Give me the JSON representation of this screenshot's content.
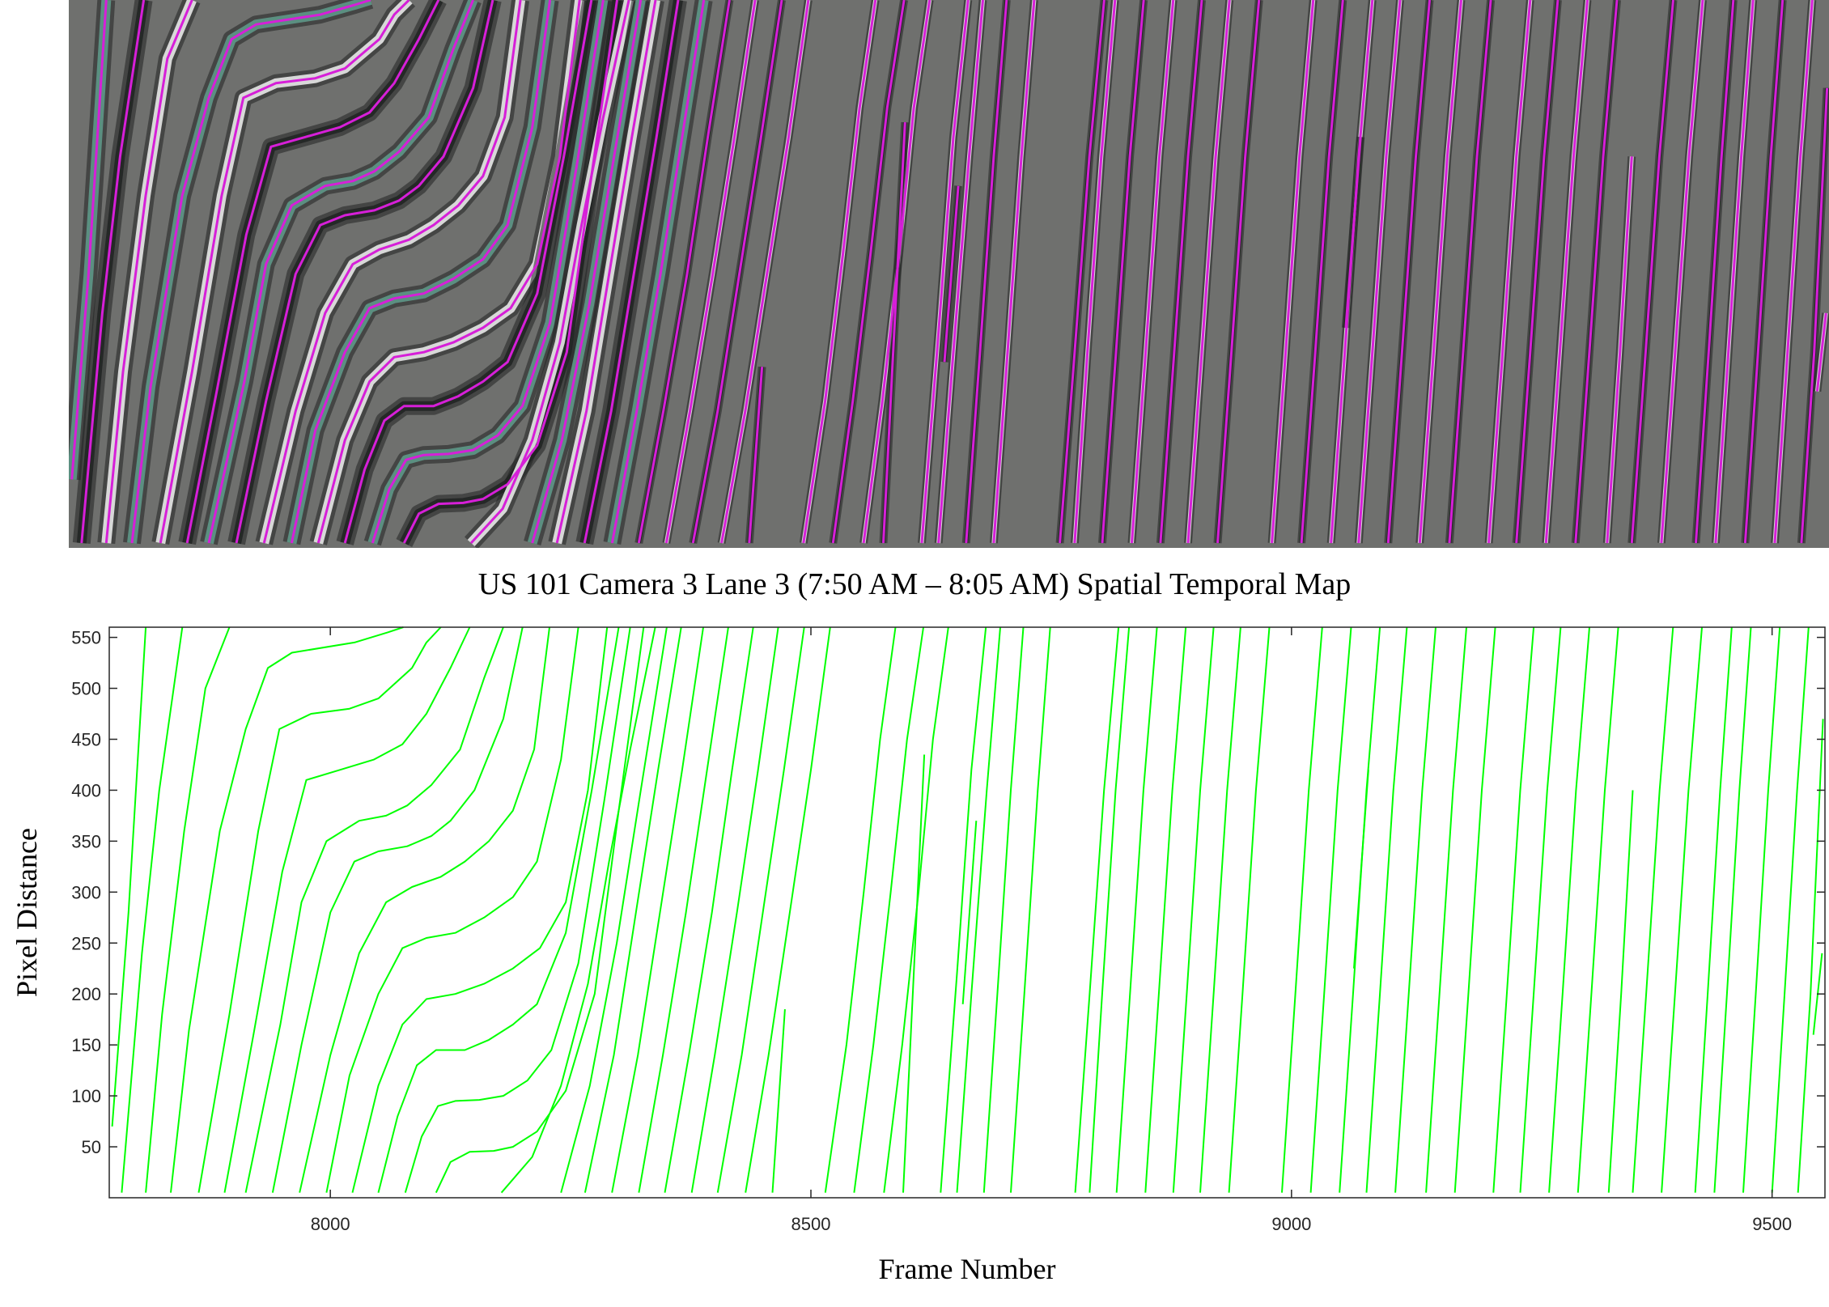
{
  "figure_caption": "US 101 Camera 3 Lane 3 (7:50 AM – 8:05 AM) Spatial Temporal Map",
  "colors": {
    "stmap_background": "#6f706e",
    "stmap_trajectory": "#d61fd8",
    "stmap_vehicle_light": "#f2f2f2",
    "stmap_vehicle_dark": "#202322",
    "stmap_vehicle_teal": "#5f9c8c",
    "plot_line": "#00ff00",
    "axis": "#262626"
  },
  "chart_data": {
    "type": "line",
    "title": "",
    "xlabel": "Frame Number",
    "ylabel": "Pixel Distance",
    "xlim": [
      7770,
      9555
    ],
    "ylim": [
      0,
      560
    ],
    "xticks": [
      8000,
      8500,
      9000,
      9500
    ],
    "yticks": [
      50,
      100,
      150,
      200,
      250,
      300,
      350,
      400,
      450,
      500,
      550
    ],
    "grid": false,
    "legend": "none",
    "series": [
      {
        "x": [
          7773,
          7790,
          7808
        ],
        "y": [
          70,
          280,
          560
        ]
      },
      {
        "x": [
          7783,
          7804,
          7822,
          7846
        ],
        "y": [
          5,
          240,
          400,
          560
        ]
      },
      {
        "x": [
          7808,
          7825,
          7848,
          7870,
          7895
        ],
        "y": [
          5,
          180,
          360,
          500,
          560
        ]
      },
      {
        "x": [
          7834,
          7853,
          7885,
          7912,
          7935,
          7960,
          8025,
          8060,
          8076
        ],
        "y": [
          5,
          165,
          360,
          460,
          520,
          535,
          545,
          555,
          560
        ]
      },
      {
        "x": [
          7863,
          7895,
          7925,
          7947,
          7980,
          8020,
          8050,
          8085,
          8100,
          8115
        ],
        "y": [
          5,
          180,
          360,
          460,
          475,
          480,
          490,
          520,
          545,
          560
        ]
      },
      {
        "x": [
          7890,
          7920,
          7950,
          7975,
          8010,
          8045,
          8075,
          8100,
          8125,
          8145
        ],
        "y": [
          5,
          160,
          320,
          410,
          420,
          430,
          445,
          475,
          520,
          560
        ]
      },
      {
        "x": [
          7912,
          7948,
          7970,
          7996,
          8030,
          8058,
          8080,
          8105,
          8135,
          8160,
          8180
        ],
        "y": [
          5,
          170,
          290,
          350,
          370,
          375,
          385,
          405,
          440,
          510,
          560
        ]
      },
      {
        "x": [
          7940,
          7970,
          8000,
          8025,
          8050,
          8080,
          8105,
          8125,
          8150,
          8180,
          8200
        ],
        "y": [
          5,
          150,
          280,
          330,
          340,
          345,
          355,
          370,
          400,
          470,
          560
        ]
      },
      {
        "x": [
          7968,
          8000,
          8030,
          8058,
          8085,
          8115,
          8140,
          8165,
          8190,
          8212,
          8228
        ],
        "y": [
          5,
          140,
          240,
          290,
          305,
          315,
          330,
          350,
          380,
          440,
          560
        ]
      },
      {
        "x": [
          7996,
          8020,
          8050,
          8075,
          8100,
          8130,
          8160,
          8190,
          8215,
          8240,
          8258
        ],
        "y": [
          5,
          120,
          200,
          245,
          255,
          260,
          275,
          295,
          330,
          430,
          560
        ]
      },
      {
        "x": [
          8023,
          8050,
          8075,
          8100,
          8130,
          8160,
          8190,
          8218,
          8245,
          8268,
          8288
        ],
        "y": [
          5,
          110,
          170,
          195,
          200,
          210,
          225,
          245,
          290,
          400,
          560
        ]
      },
      {
        "x": [
          8050,
          8070,
          8090,
          8110,
          8140,
          8165,
          8190,
          8215,
          8245,
          8272,
          8300
        ],
        "y": [
          5,
          80,
          130,
          145,
          145,
          155,
          170,
          190,
          260,
          400,
          560
        ]
      },
      {
        "x": [
          8078,
          8095,
          8112,
          8130,
          8155,
          8180,
          8205,
          8230,
          8258,
          8285,
          8312
        ],
        "y": [
          5,
          60,
          90,
          95,
          96,
          100,
          115,
          145,
          230,
          390,
          560
        ]
      },
      {
        "x": [
          8110,
          8125,
          8145,
          8170,
          8190,
          8215,
          8245,
          8275,
          8300,
          8326
        ],
        "y": [
          5,
          35,
          45,
          46,
          50,
          65,
          105,
          200,
          380,
          560
        ]
      },
      {
        "x": [
          8178,
          8210,
          8240,
          8268,
          8290,
          8312,
          8338
        ],
        "y": [
          5,
          40,
          110,
          210,
          330,
          440,
          560
        ]
      },
      {
        "x": [
          8240,
          8270,
          8298,
          8323,
          8350
        ],
        "y": [
          5,
          110,
          250,
          400,
          560
        ]
      },
      {
        "x": [
          8265,
          8295,
          8318,
          8341,
          8365
        ],
        "y": [
          5,
          140,
          280,
          420,
          560
        ]
      },
      {
        "x": [
          8293,
          8320,
          8343,
          8366,
          8388
        ],
        "y": [
          5,
          140,
          280,
          420,
          560
        ]
      },
      {
        "x": [
          8321,
          8346,
          8370,
          8392,
          8414
        ],
        "y": [
          5,
          140,
          280,
          420,
          560
        ]
      },
      {
        "x": [
          8348,
          8373,
          8397,
          8418,
          8440
        ],
        "y": [
          5,
          140,
          280,
          420,
          560
        ]
      },
      {
        "x": [
          8376,
          8400,
          8423,
          8445,
          8466
        ],
        "y": [
          5,
          140,
          280,
          420,
          560
        ]
      },
      {
        "x": [
          8403,
          8428,
          8450,
          8472,
          8493
        ],
        "y": [
          5,
          140,
          280,
          420,
          560
        ]
      },
      {
        "x": [
          8432,
          8456,
          8478,
          8500,
          8520
        ],
        "y": [
          5,
          140,
          280,
          420,
          560
        ]
      },
      {
        "x": [
          8460,
          8473
        ],
        "y": [
          5,
          185
        ]
      },
      {
        "x": [
          8515,
          8537,
          8555,
          8572,
          8588
        ],
        "y": [
          5,
          150,
          300,
          450,
          560
        ]
      },
      {
        "x": [
          8545,
          8565,
          8583,
          8600,
          8617
        ],
        "y": [
          5,
          150,
          300,
          450,
          560
        ]
      },
      {
        "x": [
          8576,
          8595,
          8612,
          8627,
          8643
        ],
        "y": [
          5,
          150,
          300,
          450,
          560
        ]
      },
      {
        "x": [
          8596,
          8607,
          8618
        ],
        "y": [
          5,
          220,
          435
        ]
      },
      {
        "x": [
          8635,
          8652,
          8667,
          8682
        ],
        "y": [
          5,
          220,
          420,
          560
        ]
      },
      {
        "x": [
          8658,
          8672
        ],
        "y": [
          190,
          370
        ]
      },
      {
        "x": [
          8652,
          8667,
          8683,
          8697
        ],
        "y": [
          5,
          200,
          400,
          560
        ]
      },
      {
        "x": [
          8680,
          8694,
          8708,
          8721
        ],
        "y": [
          5,
          200,
          400,
          560
        ]
      },
      {
        "x": [
          8708,
          8722,
          8736,
          8749
        ],
        "y": [
          5,
          200,
          400,
          560
        ]
      },
      {
        "x": [
          8775,
          8790,
          8805,
          8820
        ],
        "y": [
          5,
          200,
          400,
          560
        ]
      },
      {
        "x": [
          8790,
          8803,
          8817,
          8831
        ],
        "y": [
          5,
          200,
          400,
          560
        ]
      },
      {
        "x": [
          8818,
          8832,
          8846,
          8860
        ],
        "y": [
          5,
          200,
          400,
          560
        ]
      },
      {
        "x": [
          8848,
          8862,
          8876,
          8890
        ],
        "y": [
          5,
          200,
          400,
          560
        ]
      },
      {
        "x": [
          8877,
          8891,
          8905,
          8919
        ],
        "y": [
          5,
          200,
          400,
          560
        ]
      },
      {
        "x": [
          8905,
          8919,
          8933,
          8947
        ],
        "y": [
          5,
          200,
          400,
          560
        ]
      },
      {
        "x": [
          8935,
          8949,
          8963,
          8977
        ],
        "y": [
          5,
          200,
          400,
          560
        ]
      },
      {
        "x": [
          8990,
          9004,
          9018,
          9032
        ],
        "y": [
          5,
          200,
          400,
          560
        ]
      },
      {
        "x": [
          9020,
          9034,
          9048,
          9062
        ],
        "y": [
          5,
          200,
          400,
          560
        ]
      },
      {
        "x": [
          9050,
          9064,
          9078,
          9092
        ],
        "y": [
          5,
          200,
          400,
          560
        ]
      },
      {
        "x": [
          9065,
          9073,
          9080
        ],
        "y": [
          225,
          330,
          420
        ]
      },
      {
        "x": [
          9078,
          9092,
          9106,
          9120
        ],
        "y": [
          5,
          200,
          400,
          560
        ]
      },
      {
        "x": [
          9108,
          9122,
          9136,
          9150
        ],
        "y": [
          5,
          200,
          400,
          560
        ]
      },
      {
        "x": [
          9140,
          9154,
          9168,
          9182
        ],
        "y": [
          5,
          200,
          400,
          560
        ]
      },
      {
        "x": [
          9170,
          9184,
          9198,
          9212
        ],
        "y": [
          5,
          200,
          400,
          560
        ]
      },
      {
        "x": [
          9210,
          9224,
          9238,
          9252
        ],
        "y": [
          5,
          200,
          400,
          560
        ]
      },
      {
        "x": [
          9238,
          9252,
          9266,
          9280
        ],
        "y": [
          5,
          200,
          400,
          560
        ]
      },
      {
        "x": [
          9268,
          9282,
          9296,
          9310
        ],
        "y": [
          5,
          200,
          400,
          560
        ]
      },
      {
        "x": [
          9298,
          9312,
          9326,
          9340
        ],
        "y": [
          5,
          200,
          400,
          560
        ]
      },
      {
        "x": [
          9330,
          9343,
          9355
        ],
        "y": [
          5,
          200,
          400
        ]
      },
      {
        "x": [
          9355,
          9369,
          9383,
          9397
        ],
        "y": [
          5,
          200,
          400,
          560
        ]
      },
      {
        "x": [
          9385,
          9399,
          9413,
          9427
        ],
        "y": [
          5,
          200,
          400,
          560
        ]
      },
      {
        "x": [
          9420,
          9433,
          9446,
          9458
        ],
        "y": [
          5,
          200,
          400,
          560
        ]
      },
      {
        "x": [
          9440,
          9453,
          9466,
          9478
        ],
        "y": [
          5,
          200,
          400,
          560
        ]
      },
      {
        "x": [
          9470,
          9483,
          9496,
          9508
        ],
        "y": [
          5,
          200,
          400,
          560
        ]
      },
      {
        "x": [
          9500,
          9513,
          9526,
          9538
        ],
        "y": [
          5,
          200,
          400,
          560
        ]
      },
      {
        "x": [
          9527,
          9540,
          9553
        ],
        "y": [
          5,
          200,
          470
        ]
      },
      {
        "x": [
          9543,
          9552
        ],
        "y": [
          160,
          240
        ]
      }
    ]
  }
}
